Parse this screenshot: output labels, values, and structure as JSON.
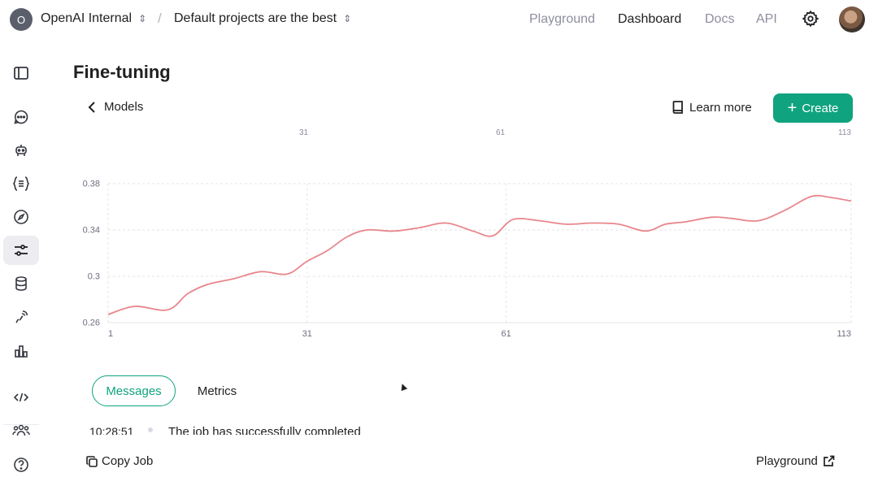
{
  "header": {
    "org_initial": "O",
    "org_name": "OpenAI Internal",
    "project_name": "Default projects are the best",
    "nav": [
      "Playground",
      "Dashboard",
      "Docs",
      "API"
    ],
    "active_nav": "Dashboard",
    "settings_icon": "gear-icon",
    "avatar_icon": "user-avatar"
  },
  "sidebar": {
    "items": [
      {
        "icon": "panel-toggle-icon"
      },
      {
        "icon": "chat-icon"
      },
      {
        "icon": "assistant-robot-icon"
      },
      {
        "icon": "json-braces-icon"
      },
      {
        "icon": "compass-icon"
      },
      {
        "icon": "sliders-icon",
        "active": true
      },
      {
        "icon": "database-icon"
      },
      {
        "icon": "audio-wave-icon"
      },
      {
        "icon": "bar-chart-icon"
      },
      {
        "icon": "code-icon"
      },
      {
        "icon": "team-icon"
      },
      {
        "icon": "help-icon"
      }
    ]
  },
  "page": {
    "title": "Fine-tuning",
    "back_label": "Models",
    "learn_more_label": "Learn more",
    "create_label": "Create"
  },
  "chart_data": {
    "type": "line",
    "x": [
      1,
      5,
      10,
      13,
      16,
      20,
      24,
      28,
      31,
      34,
      37,
      40,
      44,
      48,
      52,
      56,
      59,
      62,
      66,
      70,
      74,
      78,
      82,
      85,
      88,
      92,
      95,
      99,
      103,
      107,
      110,
      113
    ],
    "series": [
      {
        "values": [
          0.267,
          0.274,
          0.271,
          0.285,
          0.293,
          0.298,
          0.304,
          0.302,
          0.313,
          0.322,
          0.334,
          0.34,
          0.339,
          0.342,
          0.346,
          0.339,
          0.335,
          0.349,
          0.348,
          0.345,
          0.346,
          0.345,
          0.339,
          0.345,
          0.347,
          0.351,
          0.35,
          0.348,
          0.357,
          0.369,
          0.368,
          0.365
        ],
        "color": "#e8868c"
      }
    ],
    "x_ticks": [
      "1",
      "31",
      "61",
      "113"
    ],
    "y_ticks": [
      "0.26",
      "0.3",
      "0.34",
      "0.38"
    ],
    "xlim": [
      1,
      113
    ],
    "ylim": [
      0.26,
      0.38
    ],
    "grid": true,
    "top_tick_labels": [
      "31",
      "61",
      "113"
    ]
  },
  "tabs": {
    "messages_label": "Messages",
    "metrics_label": "Metrics",
    "active": "Messages"
  },
  "log": {
    "time": "10:28:51",
    "message": "The job has successfully completed"
  },
  "footer": {
    "copy_job_label": "Copy Job",
    "playground_label": "Playground"
  }
}
